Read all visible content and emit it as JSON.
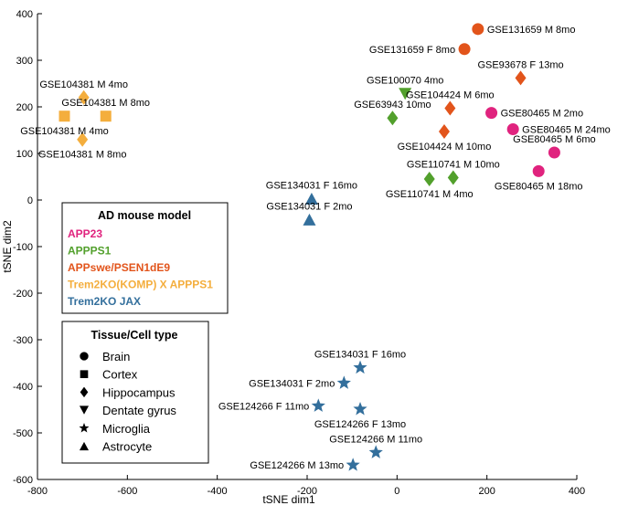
{
  "chart_data": {
    "type": "scatter",
    "title": "",
    "xlabel": "tSNE dim1",
    "ylabel": "tSNE dim2",
    "xlim": [
      -800,
      400
    ],
    "ylim": [
      -600,
      400
    ],
    "xticks": [
      -800,
      -600,
      -400,
      -200,
      0,
      200,
      400
    ],
    "yticks": [
      400,
      300,
      200,
      100,
      0,
      -100,
      -200,
      -300,
      -400,
      -500,
      -600
    ],
    "grid": false,
    "colors": {
      "APP23": "#e0237e",
      "APPPS1": "#52a02c",
      "APPswe/PSEN1dE9": "#e2541b",
      "Trem2KO(KOMP) X APPPS1": "#f4ae3d",
      "Trem2KO JAX": "#336f9c"
    },
    "legend_model": {
      "title": "AD mouse model",
      "placement": "middle-left",
      "items": [
        "APP23",
        "APPPS1",
        "APPswe/PSEN1dE9",
        "Trem2KO(KOMP) X APPPS1",
        "Trem2KO JAX"
      ]
    },
    "legend_tissue": {
      "title": "Tissue/Cell type",
      "placement": "lower-left",
      "items": [
        {
          "label": "Brain",
          "shape": "circle"
        },
        {
          "label": "Cortex",
          "shape": "square"
        },
        {
          "label": "Hippocampus",
          "shape": "diamond"
        },
        {
          "label": "Dentate gyrus",
          "shape": "triangle-down"
        },
        {
          "label": "Microglia",
          "shape": "star"
        },
        {
          "label": "Astrocyte",
          "shape": "triangle-up"
        }
      ]
    },
    "points": [
      {
        "label": "GSE131659 M 8mo",
        "x": 180,
        "y": 367,
        "model": "APPswe/PSEN1dE9",
        "shape": "circle",
        "lp": "right"
      },
      {
        "label": "GSE131659 F 8mo",
        "x": 150,
        "y": 324,
        "model": "APPswe/PSEN1dE9",
        "shape": "circle",
        "lp": "left"
      },
      {
        "label": "GSE93678 F 13mo",
        "x": 275,
        "y": 262,
        "model": "APPswe/PSEN1dE9",
        "shape": "diamond",
        "lp": "above"
      },
      {
        "label": "GSE104424 M 6mo",
        "x": 118,
        "y": 197,
        "model": "APPswe/PSEN1dE9",
        "shape": "diamond",
        "lp": "above"
      },
      {
        "label": "GSE104424 M 10mo",
        "x": 105,
        "y": 147,
        "model": "APPswe/PSEN1dE9",
        "shape": "diamond",
        "lp": "below"
      },
      {
        "label": "GSE100070 4mo",
        "x": 18,
        "y": 228,
        "model": "APPPS1",
        "shape": "triangle-down",
        "lp": "above"
      },
      {
        "label": "GSE63943 10mo",
        "x": -10,
        "y": 176,
        "model": "APPPS1",
        "shape": "diamond",
        "lp": "above"
      },
      {
        "label": "GSE110741 M 10mo",
        "x": 125,
        "y": 48,
        "model": "APPPS1",
        "shape": "diamond",
        "lp": "above"
      },
      {
        "label": "GSE110741 M 4mo",
        "x": 72,
        "y": 45,
        "model": "APPPS1",
        "shape": "diamond",
        "lp": "below"
      },
      {
        "label": "GSE80465 M 2mo",
        "x": 210,
        "y": 187,
        "model": "APP23",
        "shape": "circle",
        "lp": "right"
      },
      {
        "label": "GSE80465 M 24mo",
        "x": 258,
        "y": 152,
        "model": "APP23",
        "shape": "circle",
        "lp": "right"
      },
      {
        "label": "GSE80465 M 6mo",
        "x": 350,
        "y": 102,
        "model": "APP23",
        "shape": "circle",
        "lp": "above"
      },
      {
        "label": "GSE80465 M 18mo",
        "x": 315,
        "y": 62,
        "model": "APP23",
        "shape": "circle",
        "lp": "below"
      },
      {
        "label": "GSE104381 M 4mo",
        "x": -697,
        "y": 220,
        "model": "Trem2KO(KOMP) X APPPS1",
        "shape": "diamond",
        "lp": "above"
      },
      {
        "label": "GSE104381 M 8mo",
        "x": -648,
        "y": 180,
        "model": "Trem2KO(KOMP) X APPPS1",
        "shape": "square",
        "lp": "above"
      },
      {
        "label": "GSE104381 M 4mo",
        "x": -740,
        "y": 180,
        "model": "Trem2KO(KOMP) X APPPS1",
        "shape": "square",
        "lp": "below"
      },
      {
        "label": "GSE104381 M 8mo",
        "x": -700,
        "y": 130,
        "model": "Trem2KO(KOMP) X APPPS1",
        "shape": "diamond",
        "lp": "below"
      },
      {
        "label": "GSE134031 F 16mo",
        "x": -190,
        "y": 3,
        "model": "Trem2KO JAX",
        "shape": "triangle-up",
        "lp": "above"
      },
      {
        "label": "GSE134031 F 2mo",
        "x": -195,
        "y": -42,
        "model": "Trem2KO JAX",
        "shape": "triangle-up",
        "lp": "above"
      },
      {
        "label": "GSE134031 F 16mo",
        "x": -82,
        "y": -360,
        "model": "Trem2KO JAX",
        "shape": "star",
        "lp": "above"
      },
      {
        "label": "GSE134031 F 2mo",
        "x": -118,
        "y": -393,
        "model": "Trem2KO JAX",
        "shape": "star",
        "lp": "left"
      },
      {
        "label": "GSE124266 F 11mo",
        "x": -175,
        "y": -442,
        "model": "Trem2KO JAX",
        "shape": "star",
        "lp": "left"
      },
      {
        "label": "GSE124266 F 13mo",
        "x": -82,
        "y": -449,
        "model": "Trem2KO JAX",
        "shape": "star",
        "lp": "below"
      },
      {
        "label": "GSE124266 M 11mo",
        "x": -47,
        "y": -542,
        "model": "Trem2KO JAX",
        "shape": "star",
        "lp": "above"
      },
      {
        "label": "GSE124266 M 13mo",
        "x": -98,
        "y": -569,
        "model": "Trem2KO JAX",
        "shape": "star",
        "lp": "left"
      }
    ]
  }
}
